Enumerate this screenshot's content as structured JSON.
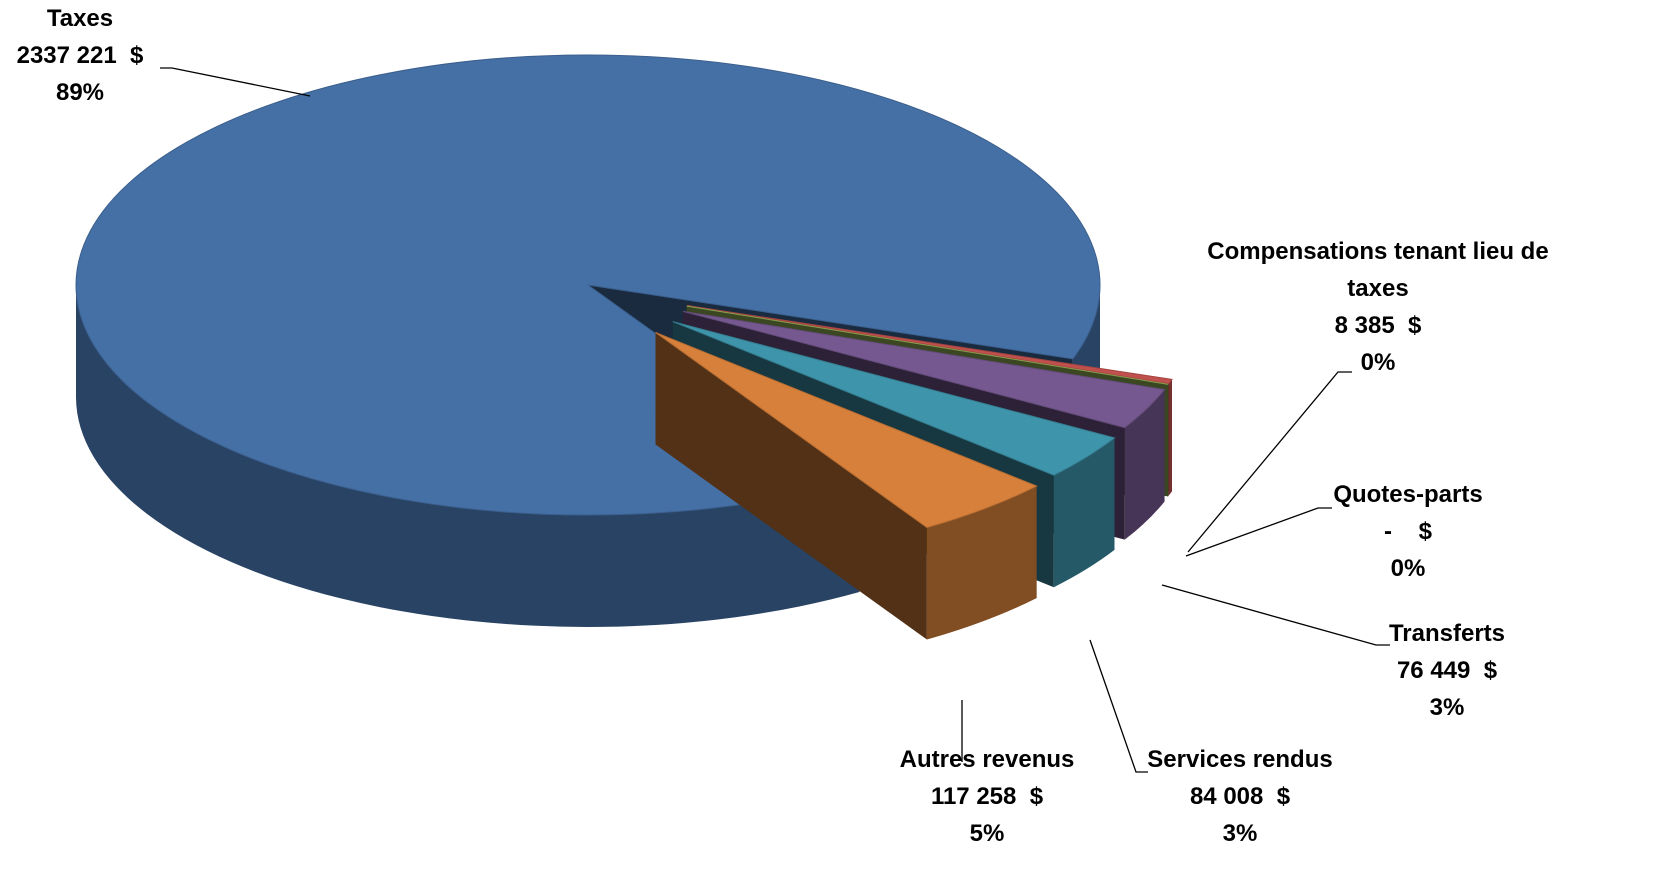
{
  "chart_data": {
    "type": "pie3d",
    "categories": [
      "Taxes",
      "Compensations tenant lieu de taxes",
      "Quotes-parts",
      "Transferts",
      "Services rendus",
      "Autres revenus"
    ],
    "values": [
      2337221,
      8385,
      0,
      76449,
      84008,
      117258
    ],
    "value_labels": [
      "2337 221  $",
      "8 385  $",
      "-    $",
      "76 449  $",
      "84 008  $",
      "117 258  $"
    ],
    "percent_labels": [
      "89%",
      "0%",
      "0%",
      "3%",
      "3%",
      "5%"
    ],
    "colors": [
      "#4570a6",
      "#c0504d",
      "#9bbb59",
      "#75588f",
      "#3e94ab",
      "#d7803b"
    ]
  }
}
